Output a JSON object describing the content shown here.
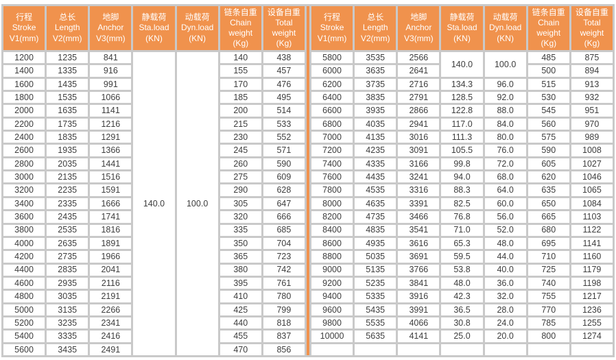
{
  "colors": {
    "header_orange": "#F0924D",
    "divider_orange": "#F0924D",
    "grid_gray": "#C9C9C9",
    "cell_text": "#3D3D3D",
    "header_text": "#FFFFFF"
  },
  "header": {
    "columns": [
      {
        "key": "stroke",
        "label": "行程\nStroke\nV1(mm)"
      },
      {
        "key": "length",
        "label": "总长\nLength\nV2(mm)"
      },
      {
        "key": "anchor",
        "label": "地脚\nAnchor\nV3(mm)"
      },
      {
        "key": "sta-load",
        "label": "静载荷\nSta.load\n(KN)"
      },
      {
        "key": "dyn-load",
        "label": "动载荷\nDyn.load\n(KN)"
      },
      {
        "key": "chain-weight",
        "label": "链条自重\nChain\nweight\n(Kg)"
      },
      {
        "key": "total-weight",
        "label": "设备自重\nTotal\nweight\n(Kg)"
      }
    ]
  },
  "left_table": {
    "sta_load": "140.0",
    "dyn_load": "100.0",
    "rows": [
      [
        "1200",
        "1235",
        "841",
        "140",
        "438"
      ],
      [
        "1400",
        "1335",
        "916",
        "155",
        "457"
      ],
      [
        "1600",
        "1435",
        "991",
        "170",
        "476"
      ],
      [
        "1800",
        "1535",
        "1066",
        "185",
        "495"
      ],
      [
        "2000",
        "1635",
        "1141",
        "200",
        "514"
      ],
      [
        "2200",
        "1735",
        "1216",
        "215",
        "533"
      ],
      [
        "2400",
        "1835",
        "1291",
        "230",
        "552"
      ],
      [
        "2600",
        "1935",
        "1366",
        "245",
        "571"
      ],
      [
        "2800",
        "2035",
        "1441",
        "260",
        "590"
      ],
      [
        "3000",
        "2135",
        "1516",
        "275",
        "609"
      ],
      [
        "3200",
        "2235",
        "1591",
        "290",
        "628"
      ],
      [
        "3400",
        "2335",
        "1666",
        "305",
        "647"
      ],
      [
        "3600",
        "2435",
        "1741",
        "320",
        "666"
      ],
      [
        "3800",
        "2535",
        "1816",
        "335",
        "685"
      ],
      [
        "4000",
        "2635",
        "1891",
        "350",
        "704"
      ],
      [
        "4200",
        "2735",
        "1966",
        "365",
        "723"
      ],
      [
        "4400",
        "2835",
        "2041",
        "380",
        "742"
      ],
      [
        "4600",
        "2935",
        "2116",
        "395",
        "761"
      ],
      [
        "4800",
        "3035",
        "2191",
        "410",
        "780"
      ],
      [
        "5000",
        "3135",
        "2266",
        "425",
        "799"
      ],
      [
        "5200",
        "3235",
        "2341",
        "440",
        "818"
      ],
      [
        "5400",
        "3335",
        "2416",
        "455",
        "837"
      ],
      [
        "5600",
        "3435",
        "2491",
        "470",
        "856"
      ]
    ]
  },
  "right_table": {
    "merged_sta_load": "140.0",
    "merged_dyn_load": "100.0",
    "rows": [
      [
        "5800",
        "3535",
        "2566",
        "",
        "",
        "485",
        "875"
      ],
      [
        "6000",
        "3635",
        "2641",
        "",
        "",
        "500",
        "894"
      ],
      [
        "6200",
        "3735",
        "2716",
        "134.3",
        "96.0",
        "515",
        "913"
      ],
      [
        "6400",
        "3835",
        "2791",
        "128.5",
        "92.0",
        "530",
        "932"
      ],
      [
        "6600",
        "3935",
        "2866",
        "122.8",
        "88.0",
        "545",
        "951"
      ],
      [
        "6800",
        "4035",
        "2941",
        "117.0",
        "84.0",
        "560",
        "970"
      ],
      [
        "7000",
        "4135",
        "3016",
        "111.3",
        "80.0",
        "575",
        "989"
      ],
      [
        "7200",
        "4235",
        "3091",
        "105.5",
        "76.0",
        "590",
        "1008"
      ],
      [
        "7400",
        "4335",
        "3166",
        "99.8",
        "72.0",
        "605",
        "1027"
      ],
      [
        "7600",
        "4435",
        "3241",
        "94.0",
        "68.0",
        "620",
        "1046"
      ],
      [
        "7800",
        "4535",
        "3316",
        "88.3",
        "64.0",
        "635",
        "1065"
      ],
      [
        "8000",
        "4635",
        "3391",
        "82.5",
        "60.0",
        "650",
        "1084"
      ],
      [
        "8200",
        "4735",
        "3466",
        "76.8",
        "56.0",
        "665",
        "1103"
      ],
      [
        "8400",
        "4835",
        "3541",
        "71.0",
        "52.0",
        "680",
        "1122"
      ],
      [
        "8600",
        "4935",
        "3616",
        "65.3",
        "48.0",
        "695",
        "1141"
      ],
      [
        "8800",
        "5035",
        "3691",
        "59.5",
        "44.0",
        "710",
        "1160"
      ],
      [
        "9000",
        "5135",
        "3766",
        "53.8",
        "40.0",
        "725",
        "1179"
      ],
      [
        "9200",
        "5235",
        "3841",
        "48.0",
        "36.0",
        "740",
        "1198"
      ],
      [
        "9400",
        "5335",
        "3916",
        "42.3",
        "32.0",
        "755",
        "1217"
      ],
      [
        "9600",
        "5435",
        "3991",
        "36.5",
        "28.0",
        "770",
        "1236"
      ],
      [
        "9800",
        "5535",
        "4066",
        "30.8",
        "24.0",
        "785",
        "1255"
      ],
      [
        "10000",
        "5635",
        "4141",
        "25.0",
        "20.0",
        "800",
        "1274"
      ],
      [
        "",
        "",
        "",
        "",
        "",
        "",
        ""
      ]
    ]
  }
}
